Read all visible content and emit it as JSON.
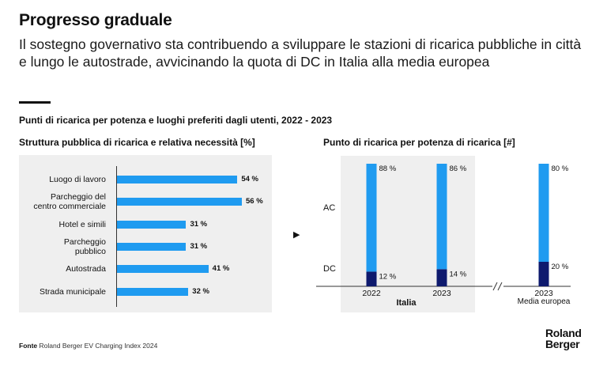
{
  "title": "Progresso graduale",
  "subtitle": "Il sostegno governativo sta contribuendo a sviluppare le stazioni di ricarica pubbliche in città e lungo le autostrade, avvicinando la quota di DC in Italia alla media europea",
  "section_title": "Punti di ricarica per potenza e luoghi preferiti dagli utenti, 2022 - 2023",
  "footer": {
    "label": "Fonte",
    "text": "Roland Berger EV Charging Index 2024"
  },
  "logo": {
    "line1": "Roland",
    "line2": "Berger"
  },
  "arrow_glyph": "▶",
  "colors": {
    "light_blue": "#1f9bf0",
    "dark_blue": "#0e1a6e",
    "panel": "#efefef"
  },
  "chart_data": [
    {
      "type": "bar",
      "orientation": "horizontal",
      "title": "Struttura pubblica di ricarica e relativa necessità [%]",
      "categories": [
        "Luogo di lavoro",
        "Parcheggio del centro commerciale",
        "Hotel e simili",
        "Parcheggio pubblico",
        "Autostrada",
        "Strada municipale"
      ],
      "category_lines": [
        [
          "Luogo di lavoro"
        ],
        [
          "Parcheggio del",
          "centro commerciale"
        ],
        [
          "Hotel e simili"
        ],
        [
          "Parcheggio",
          "pubblico"
        ],
        [
          "Autostrada"
        ],
        [
          "Strada municipale"
        ]
      ],
      "values": [
        54,
        56,
        31,
        31,
        41,
        32
      ],
      "value_labels": [
        "54 %",
        "56 %",
        "31 %",
        "31 %",
        "41 %",
        "32 %"
      ],
      "xlim": [
        0,
        100
      ]
    },
    {
      "type": "bar",
      "stacked": true,
      "title": "Punto di ricarica per potenza di ricarica [#]",
      "categories": [
        "2022",
        "2023",
        "2023"
      ],
      "category_sublabels": [
        "Italia",
        "Media europea"
      ],
      "series": [
        {
          "name": "DC",
          "values": [
            12,
            14,
            20
          ],
          "labels": [
            "12 %",
            "14 %",
            "20 %"
          ]
        },
        {
          "name": "AC",
          "values": [
            88,
            86,
            80
          ],
          "labels": [
            "88 %",
            "86 %",
            "80 %"
          ]
        }
      ],
      "ylim": [
        0,
        100
      ]
    }
  ]
}
